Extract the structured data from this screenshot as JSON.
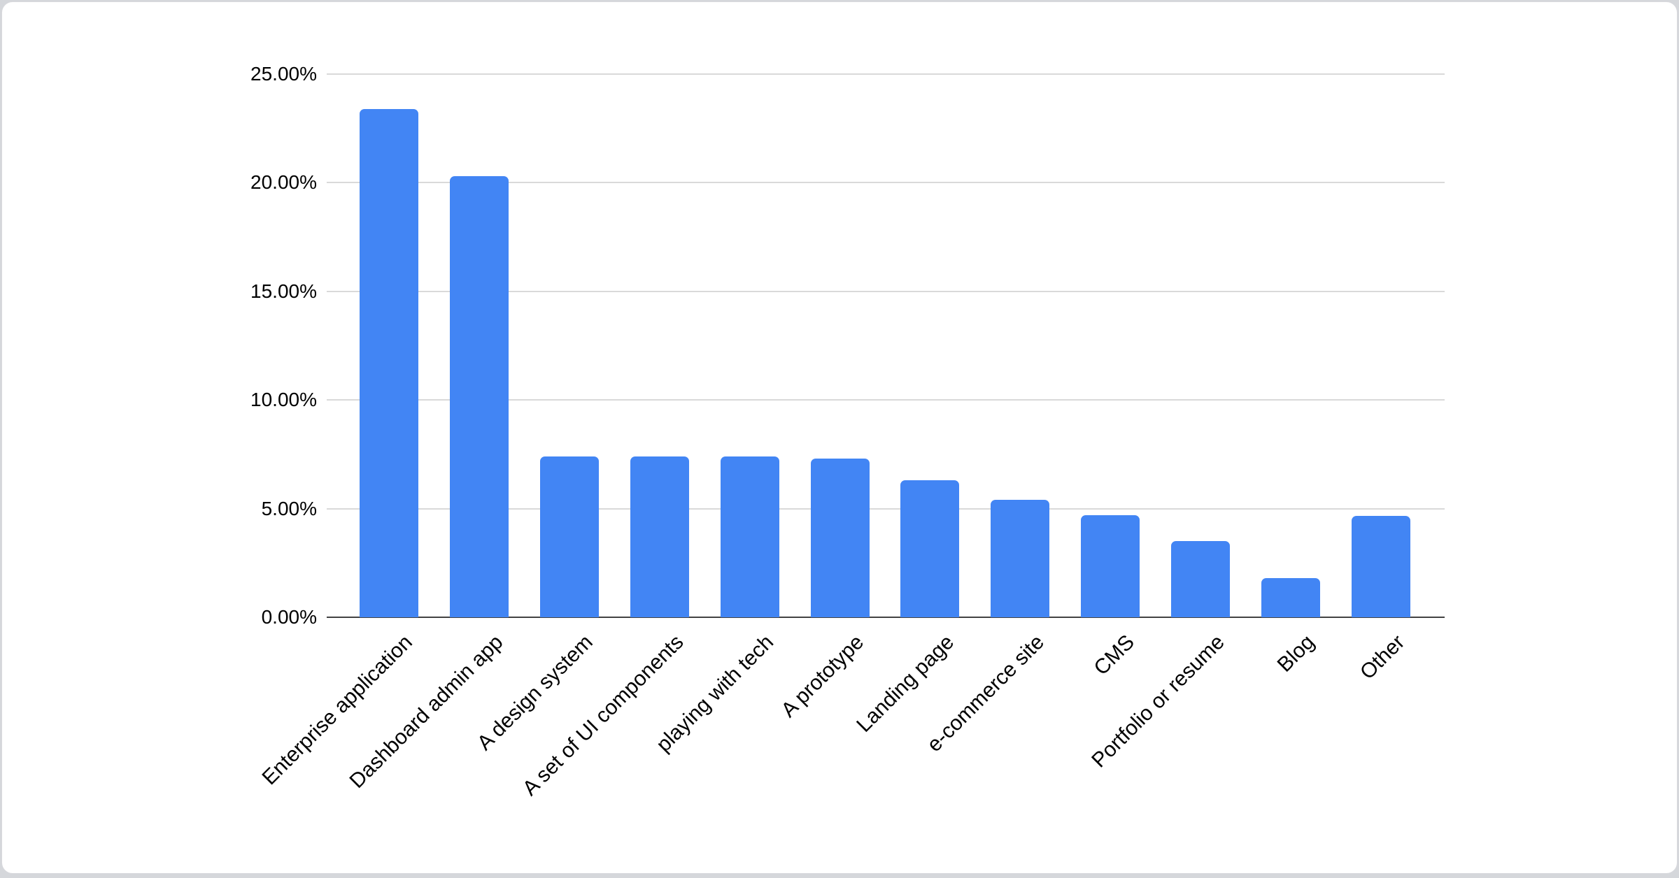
{
  "page": {
    "background_color": "#d5d7db",
    "card_background": "#ffffff",
    "card_border_color": "#d8d9dd"
  },
  "chart_data": {
    "type": "bar",
    "title": "",
    "categories": [
      "Enterprise application",
      "Dashboard admin app",
      "A design system",
      "A set of UI components",
      "playing with tech",
      "A prototype",
      "Landing page",
      "e-commerce site",
      "CMS",
      "Portfolio or resume",
      "Blog",
      "Other"
    ],
    "values": [
      23.4,
      20.3,
      7.4,
      7.4,
      7.4,
      7.3,
      6.3,
      5.4,
      4.7,
      3.5,
      1.8,
      4.65
    ],
    "unit": "%",
    "bar_color": "#4285f4",
    "axis_line_color": "#424242",
    "gridline_color": "#d9d9d9",
    "text_color": "#000000",
    "ylim": [
      0,
      25
    ],
    "yticks": [
      {
        "value": 0,
        "label": "0.00%"
      },
      {
        "value": 5,
        "label": "5.00%"
      },
      {
        "value": 10,
        "label": "10.00%"
      },
      {
        "value": 15,
        "label": "15.00%"
      },
      {
        "value": 20,
        "label": "20.00%"
      },
      {
        "value": 25,
        "label": "25.00%"
      }
    ],
    "grid": true,
    "legend": "none",
    "x_label_rotation_deg": 45,
    "xlabel": "",
    "ylabel": ""
  }
}
